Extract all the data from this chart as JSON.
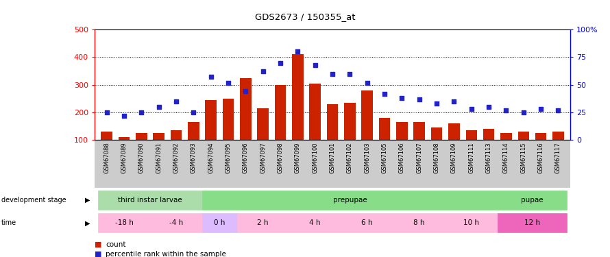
{
  "title": "GDS2673 / 150355_at",
  "samples": [
    "GSM67088",
    "GSM67089",
    "GSM67090",
    "GSM67091",
    "GSM67092",
    "GSM67093",
    "GSM67094",
    "GSM67095",
    "GSM67096",
    "GSM67097",
    "GSM67098",
    "GSM67099",
    "GSM67100",
    "GSM67101",
    "GSM67102",
    "GSM67103",
    "GSM67105",
    "GSM67106",
    "GSM67107",
    "GSM67108",
    "GSM67109",
    "GSM67111",
    "GSM67113",
    "GSM67114",
    "GSM67115",
    "GSM67116",
    "GSM67117"
  ],
  "counts": [
    130,
    110,
    125,
    125,
    135,
    165,
    245,
    250,
    325,
    215,
    300,
    410,
    305,
    230,
    235,
    280,
    180,
    165,
    165,
    145,
    160,
    135,
    140,
    125,
    130,
    125,
    130
  ],
  "percentiles": [
    25,
    22,
    25,
    30,
    35,
    25,
    57,
    52,
    44,
    62,
    70,
    80,
    68,
    60,
    60,
    52,
    42,
    38,
    37,
    33,
    35,
    28,
    30,
    27,
    25,
    28,
    27
  ],
  "bar_color": "#cc2200",
  "dot_color": "#2222cc",
  "stages": [
    {
      "name": "third instar larvae",
      "s": 0,
      "e": 6,
      "color": "#aaddaa"
    },
    {
      "name": "prepupae",
      "s": 6,
      "e": 23,
      "color": "#88dd88"
    },
    {
      "name": "pupae",
      "s": 23,
      "e": 27,
      "color": "#88dd88"
    }
  ],
  "times": [
    {
      "name": "-18 h",
      "s": 0,
      "e": 3,
      "color": "#ffbbdd"
    },
    {
      "name": "-4 h",
      "s": 3,
      "e": 6,
      "color": "#ffbbdd"
    },
    {
      "name": "0 h",
      "s": 6,
      "e": 8,
      "color": "#ddbbff"
    },
    {
      "name": "2 h",
      "s": 8,
      "e": 11,
      "color": "#ffbbdd"
    },
    {
      "name": "4 h",
      "s": 11,
      "e": 14,
      "color": "#ffbbdd"
    },
    {
      "name": "6 h",
      "s": 14,
      "e": 17,
      "color": "#ffbbdd"
    },
    {
      "name": "8 h",
      "s": 17,
      "e": 20,
      "color": "#ffbbdd"
    },
    {
      "name": "10 h",
      "s": 20,
      "e": 23,
      "color": "#ffbbdd"
    },
    {
      "name": "12 h",
      "s": 23,
      "e": 27,
      "color": "#ee66bb"
    }
  ]
}
